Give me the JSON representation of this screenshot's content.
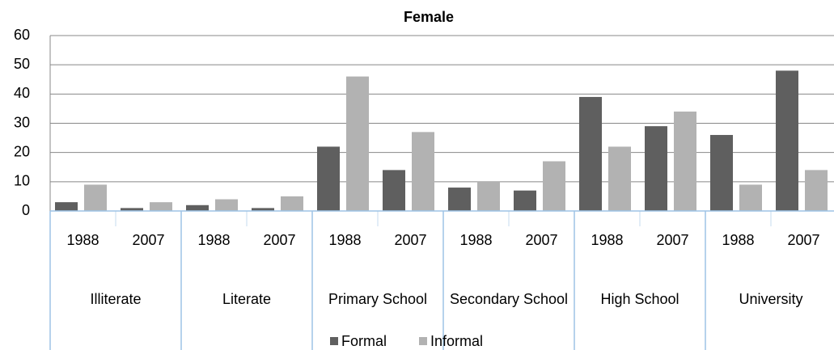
{
  "chart_data": {
    "type": "bar",
    "title": "Female",
    "categories": [
      "1988",
      "2007",
      "1988",
      "2007",
      "1988",
      "2007",
      "1988",
      "2007",
      "1988",
      "2007",
      "1988",
      "2007"
    ],
    "groups": [
      "Illiterate",
      "Literate",
      "Primary School",
      "Secondary School",
      "High School",
      "University"
    ],
    "series": [
      {
        "name": "Formal",
        "color": "#5f5f5f",
        "values": [
          3,
          1,
          2,
          1,
          22,
          14,
          8,
          7,
          39,
          29,
          26,
          48
        ]
      },
      {
        "name": "Informal",
        "color": "#b2b2b2",
        "values": [
          9,
          3,
          4,
          5,
          46,
          27,
          10,
          17,
          22,
          34,
          9,
          14
        ]
      }
    ],
    "ylim": [
      0,
      60
    ],
    "yticks": [
      0,
      10,
      20,
      30,
      40,
      50,
      60
    ],
    "grid": true,
    "legend": "bottom"
  }
}
